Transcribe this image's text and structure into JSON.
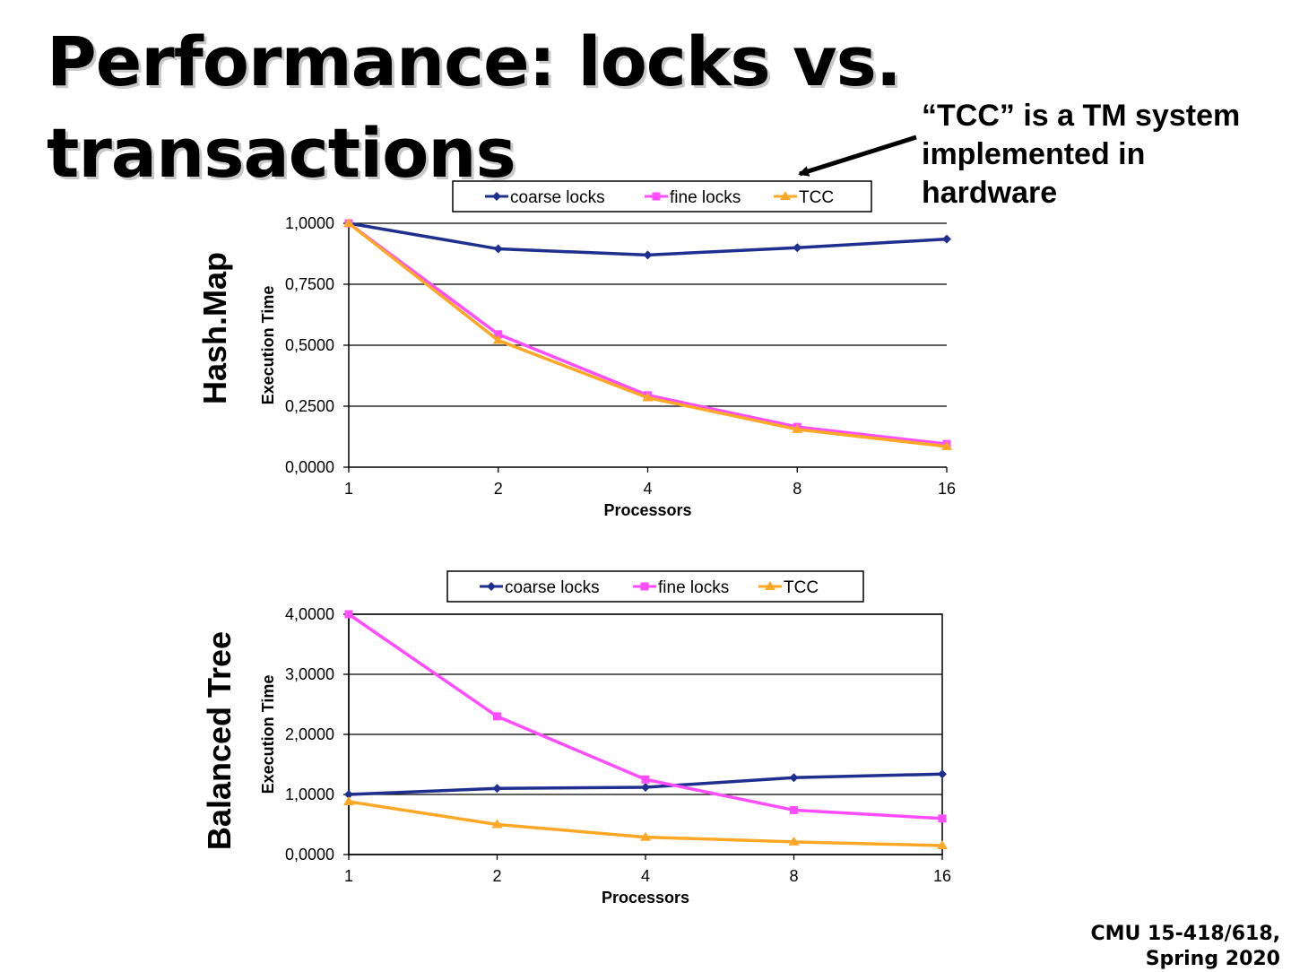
{
  "slide": {
    "title_line1": "Performance: locks vs.",
    "title_line2": "transactions",
    "note_line1": "“TCC” is a TM system",
    "note_line2": "implemented in",
    "note_line3": "hardware",
    "footer_line1": "CMU 15-418/618,",
    "footer_line2": "Spring 2020"
  },
  "colors": {
    "coarse_locks": "#1f2f8f",
    "fine_locks": "#ff4dff",
    "TCC": "#ffa726"
  },
  "chart_data": [
    {
      "type": "line",
      "panel_label": "Hash.Map",
      "xlabel": "Processors",
      "ylabel": "Execution Time",
      "categories": [
        "1",
        "2",
        "4",
        "8",
        "16"
      ],
      "ylim": [
        0,
        1
      ],
      "yticks": [
        "0,0000",
        "0,2500",
        "0,5000",
        "0,7500",
        "1,0000"
      ],
      "legend_position": "top",
      "grid": true,
      "series": [
        {
          "name": "coarse locks",
          "marker": "diamond",
          "values": [
            1.0,
            0.895,
            0.87,
            0.9,
            0.935
          ]
        },
        {
          "name": "fine locks",
          "marker": "square",
          "values": [
            1.0,
            0.545,
            0.295,
            0.165,
            0.095
          ]
        },
        {
          "name": "TCC",
          "marker": "triangle",
          "values": [
            1.0,
            0.52,
            0.285,
            0.155,
            0.085
          ]
        }
      ]
    },
    {
      "type": "line",
      "panel_label": "Balanced Tree",
      "xlabel": "Processors",
      "ylabel": "Execution Time",
      "categories": [
        "1",
        "2",
        "4",
        "8",
        "16"
      ],
      "ylim": [
        0,
        4
      ],
      "yticks": [
        "0,0000",
        "1,0000",
        "2,0000",
        "3,0000",
        "4,0000"
      ],
      "legend_position": "top",
      "grid": true,
      "series": [
        {
          "name": "coarse locks",
          "marker": "diamond",
          "values": [
            1.0,
            1.1,
            1.12,
            1.28,
            1.34
          ]
        },
        {
          "name": "fine locks",
          "marker": "square",
          "values": [
            4.0,
            2.3,
            1.25,
            0.74,
            0.6
          ]
        },
        {
          "name": "TCC",
          "marker": "triangle",
          "values": [
            0.88,
            0.5,
            0.29,
            0.21,
            0.15
          ]
        }
      ]
    }
  ]
}
